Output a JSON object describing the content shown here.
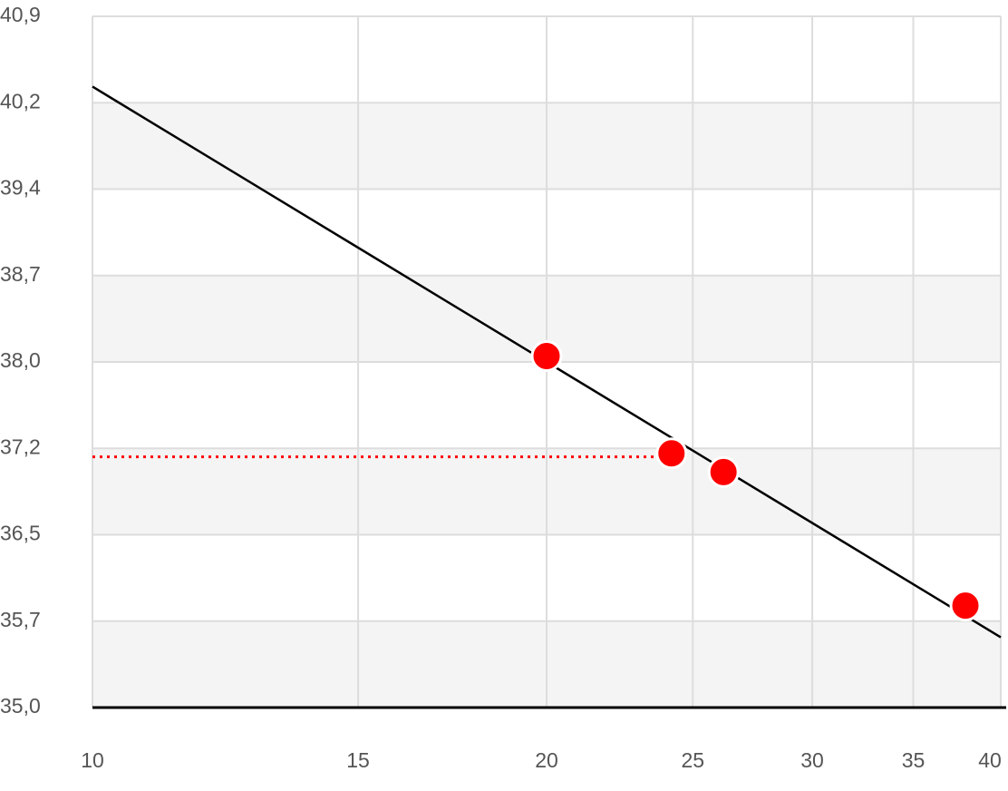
{
  "chart_data": {
    "type": "scatter",
    "xscale": "log",
    "xlim": [
      10,
      40
    ],
    "xticks": [
      10,
      15,
      20,
      25,
      30,
      35,
      40
    ],
    "ylim": [
      35,
      40.9
    ],
    "yticks": [
      {
        "value": 35,
        "label": "35,0"
      },
      {
        "value": 35.7375,
        "label": "35,7"
      },
      {
        "value": 36.475,
        "label": "36,5"
      },
      {
        "value": 37.2125,
        "label": "37,2"
      },
      {
        "value": 37.95,
        "label": "38,0"
      },
      {
        "value": 38.6875,
        "label": "38,7"
      },
      {
        "value": 39.425,
        "label": "39,4"
      },
      {
        "value": 40.1625,
        "label": "40,2"
      },
      {
        "value": 40.9,
        "label": "40,9"
      }
    ],
    "grid": true,
    "banded": true,
    "series": [
      {
        "type": "line",
        "color": "#000000",
        "x": [
          10,
          40
        ],
        "values": [
          40.3,
          35.6
        ]
      },
      {
        "type": "scatter",
        "color": "#ff0000",
        "x": [
          20,
          24.2,
          26.2,
          37.9
        ],
        "values": [
          38.0,
          37.17,
          37.01,
          35.87
        ]
      }
    ],
    "reference_line": {
      "color": "#ff0000",
      "y": 37.14,
      "x_end": 24.2
    }
  }
}
